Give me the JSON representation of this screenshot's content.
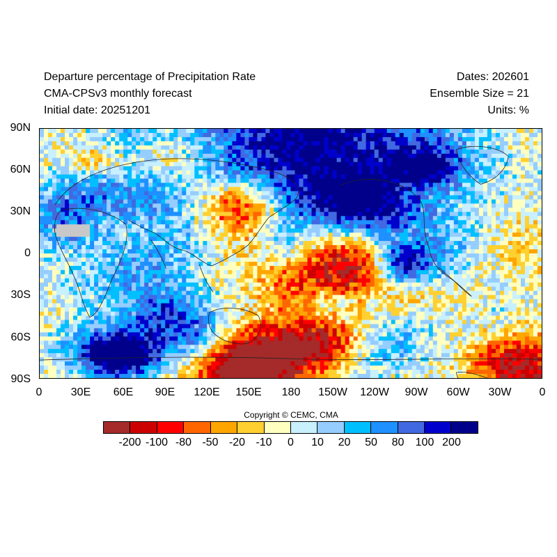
{
  "title": {
    "line1": "Departure percentage of Precipitation Rate",
    "line2": "CMA-CPSv3 monthly forecast",
    "line3": "Initial date: 20251201"
  },
  "meta": {
    "dates": "Dates: 202601",
    "ensemble": "Ensemble Size = 21",
    "units": "Units: %"
  },
  "axes": {
    "y_ticks": [
      "90N",
      "60N",
      "30N",
      "0",
      "30S",
      "60S",
      "90S"
    ],
    "x_ticks": [
      "0",
      "30E",
      "60E",
      "90E",
      "120E",
      "150E",
      "180",
      "150W",
      "120W",
      "90W",
      "60W",
      "30W",
      "0"
    ]
  },
  "copyright": "Copyright © CEMC, CMA",
  "colorbar": {
    "colors": [
      "#a52a2a",
      "#cc0000",
      "#ff0000",
      "#ff6600",
      "#ffa500",
      "#ffd030",
      "#ffffc0",
      "#c8f0ff",
      "#96cdff",
      "#00bfff",
      "#1e90ff",
      "#4169e1",
      "#0000cd",
      "#00008b"
    ],
    "labels": [
      "-200",
      "-100",
      "-80",
      "-50",
      "-20",
      "-10",
      "0",
      "10",
      "20",
      "50",
      "80",
      "100",
      "200"
    ],
    "missing_color": "#c8c8c8"
  }
}
